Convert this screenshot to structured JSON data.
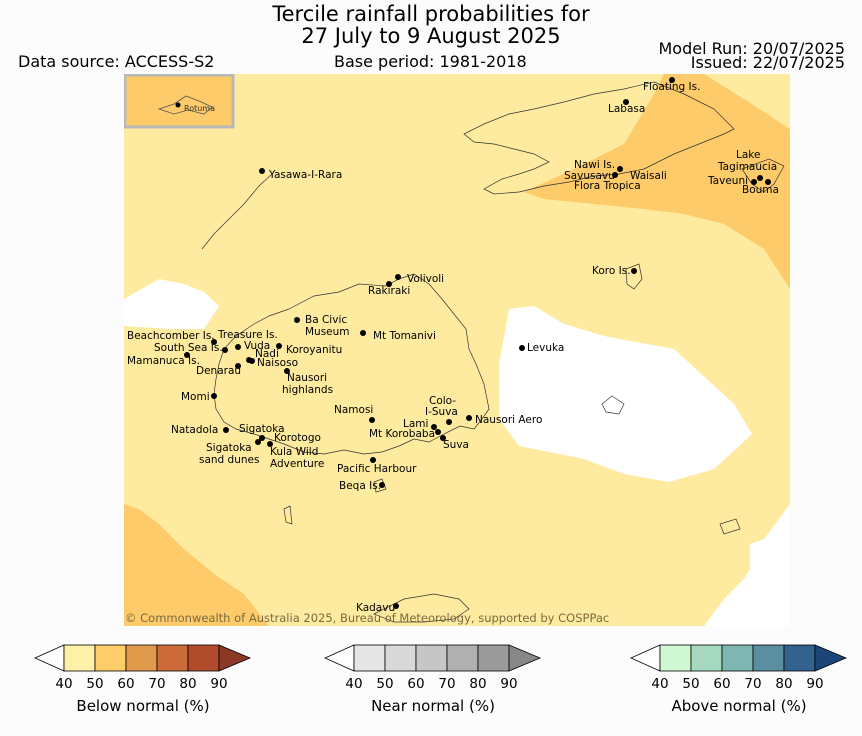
{
  "title_line1": "Tercile rainfall probabilities for",
  "title_line2": "27 July to 9 August 2025",
  "data_source": "Data source: ACCESS-S2",
  "base_period": "Base period: 1981-2018",
  "model_run": "Model Run: 20/07/2025",
  "issued": "Issued: 22/07/2025",
  "copyright": "© Commonwealth of Australia 2025, Bureau of Meteorology, supported by COSPPac",
  "inset_label": "Rotuma",
  "places": [
    {
      "name": "Floating Is."
    },
    {
      "name": "Labasa"
    },
    {
      "name": "Yasawa-I-Rara"
    },
    {
      "name": "Nawi Is."
    },
    {
      "name": "Savusavu"
    },
    {
      "name": "Waisali"
    },
    {
      "name": "Flora Tropica"
    },
    {
      "name": "Lake"
    },
    {
      "name": "Tagimaucia"
    },
    {
      "name": "Taveuni"
    },
    {
      "name": "Bouma"
    },
    {
      "name": "Koro Is."
    },
    {
      "name": "Volivoli"
    },
    {
      "name": "Rakiraki"
    },
    {
      "name": "Ba Civic"
    },
    {
      "name": "Museum"
    },
    {
      "name": "Mt Tomanivi"
    },
    {
      "name": "Beachcomber Is."
    },
    {
      "name": "Treasure Is."
    },
    {
      "name": "South Sea Is."
    },
    {
      "name": "Vuda"
    },
    {
      "name": "Koroyanitu"
    },
    {
      "name": "Mamanuca Is."
    },
    {
      "name": "Nadi"
    },
    {
      "name": "Naisoso"
    },
    {
      "name": "Denarau"
    },
    {
      "name": "Nausori"
    },
    {
      "name": "highlands"
    },
    {
      "name": "Levuka"
    },
    {
      "name": "Momi"
    },
    {
      "name": "Namosi"
    },
    {
      "name": "Colo-"
    },
    {
      "name": "I-Suva"
    },
    {
      "name": "Lami"
    },
    {
      "name": "Nausori Aero"
    },
    {
      "name": "Mt Korobaba"
    },
    {
      "name": "Natadola"
    },
    {
      "name": "Sigatoka"
    },
    {
      "name": "Korotogo"
    },
    {
      "name": "Suva"
    },
    {
      "name": "Sigatoka"
    },
    {
      "name": "sand dunes"
    },
    {
      "name": "Kula Wild"
    },
    {
      "name": "Adventure"
    },
    {
      "name": "Pacific Harbour"
    },
    {
      "name": "Beqa Is."
    },
    {
      "name": "Kadavu"
    }
  ],
  "legends": [
    {
      "title": "Below normal (%)",
      "ticks": [
        "40",
        "50",
        "60",
        "70",
        "80",
        "90"
      ],
      "colors": [
        "#fff0a8",
        "#fdcd69",
        "#e09a4c",
        "#cc6a3a",
        "#b04b2c",
        "#8c3826"
      ]
    },
    {
      "title": "Near normal (%)",
      "ticks": [
        "40",
        "50",
        "60",
        "70",
        "80",
        "90"
      ],
      "colors": [
        "#e6e6e6",
        "#d9d9d9",
        "#c6c6c6",
        "#b0b0b0",
        "#9b9b9b",
        "#888888"
      ]
    },
    {
      "title": "Above normal (%)",
      "ticks": [
        "40",
        "50",
        "60",
        "70",
        "80",
        "90"
      ],
      "colors": [
        "#cdf8d2",
        "#a6d9bf",
        "#7eb7b1",
        "#5a8ea0",
        "#33628f",
        "#1d4678"
      ]
    }
  ],
  "map_colors": {
    "light": "#feeba0",
    "mid": "#fdcb6a",
    "white": "#ffffff"
  }
}
